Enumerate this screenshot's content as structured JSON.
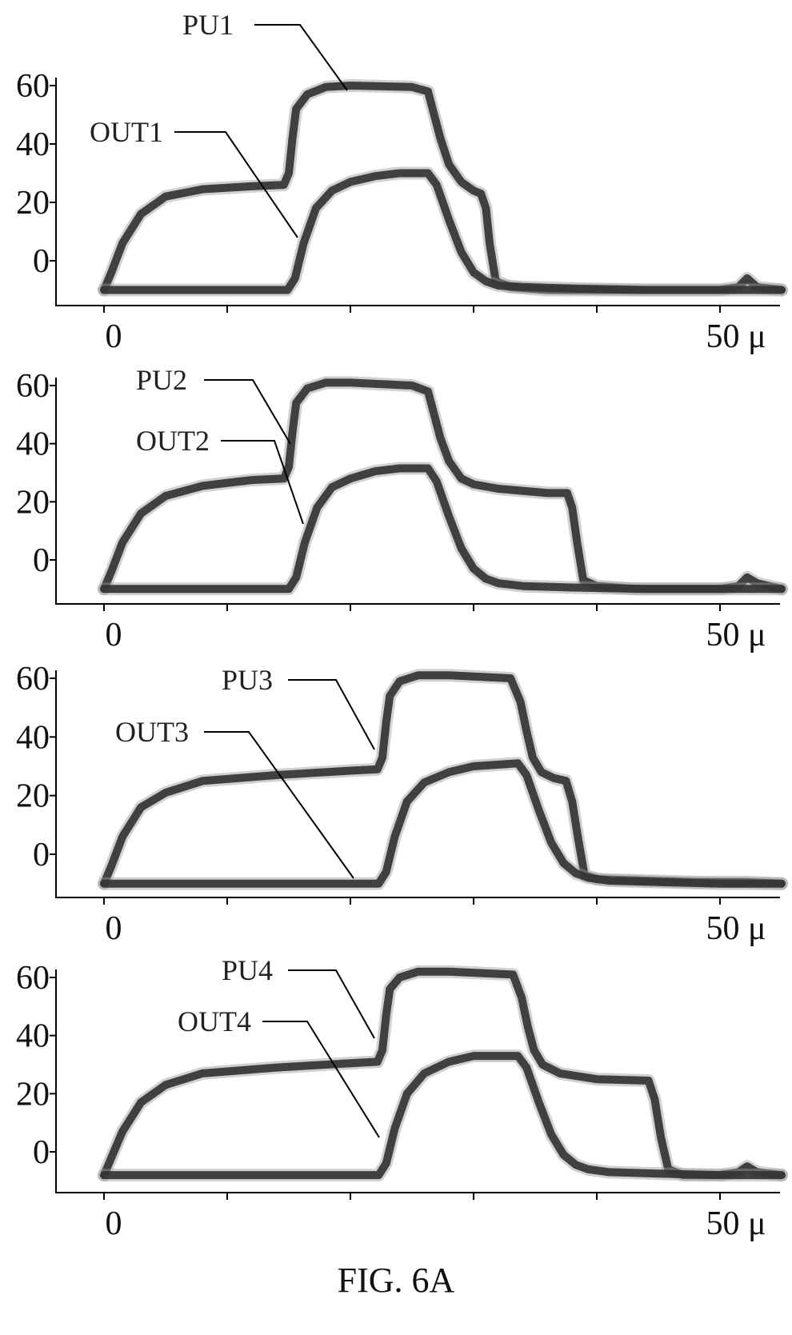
{
  "figure_label": "FIG. 6A",
  "chart_data": [
    {
      "type": "line",
      "xlim": [
        0,
        55
      ],
      "ylim": [
        -15,
        65
      ],
      "x_ticks": [
        0,
        10,
        20,
        30,
        40,
        50
      ],
      "x_tick_labels": [
        "0",
        "50 μ"
      ],
      "y_ticks": [
        0,
        20,
        40,
        60
      ],
      "y_tick_labels": [
        "0",
        "20",
        "40",
        "60"
      ],
      "series": [
        {
          "name": "PU1",
          "x": [
            0,
            0.6,
            1.5,
            3,
            5,
            8,
            12,
            14.6,
            15.0,
            15.3,
            15.6,
            16.5,
            18,
            20,
            25,
            26.3,
            26.8,
            27.3,
            28,
            29,
            30,
            30.6,
            31.0,
            31.3,
            31.8,
            33,
            36,
            40,
            44,
            48,
            50,
            51.5,
            52.2,
            53,
            55
          ],
          "y": [
            -10,
            -4,
            6,
            16,
            22,
            24.5,
            25.5,
            26,
            30,
            42,
            52,
            57,
            59.5,
            60,
            59.5,
            58,
            50,
            42,
            33,
            27,
            24,
            23,
            18,
            6,
            -7,
            -9,
            -10,
            -10,
            -10,
            -10,
            -10,
            -9,
            -6,
            -9,
            -10
          ]
        },
        {
          "name": "OUT1",
          "x": [
            0,
            5,
            10,
            14.9,
            15.5,
            16.2,
            17.2,
            18.5,
            20,
            22,
            24,
            26.3,
            27,
            28,
            29,
            30,
            31,
            32,
            34,
            38,
            44,
            50,
            55
          ],
          "y": [
            -10,
            -10,
            -10,
            -10,
            -6,
            6,
            18,
            24,
            27,
            29,
            30,
            30,
            26,
            14,
            3,
            -4,
            -7,
            -8.5,
            -9,
            -9.5,
            -10,
            -10,
            -10
          ]
        }
      ],
      "annotations": [
        {
          "text": "PU1",
          "target_series": "PU1"
        },
        {
          "text": "OUT1",
          "target_series": "OUT1"
        }
      ]
    },
    {
      "type": "line",
      "xlim": [
        0,
        55
      ],
      "ylim": [
        -15,
        65
      ],
      "x_ticks": [
        0,
        10,
        20,
        30,
        40,
        50
      ],
      "x_tick_labels": [
        "0",
        "50 μ"
      ],
      "y_ticks": [
        0,
        20,
        40,
        60
      ],
      "y_tick_labels": [
        "0",
        "20",
        "40",
        "60"
      ],
      "series": [
        {
          "name": "PU2",
          "x": [
            0,
            0.6,
            1.5,
            3,
            5,
            8,
            12,
            14.6,
            15.0,
            15.3,
            15.6,
            16.5,
            18,
            20,
            25,
            26.3,
            26.8,
            27.3,
            28,
            29,
            30,
            32,
            36,
            37.6,
            38.0,
            38.4,
            38.9,
            40,
            43,
            47,
            50,
            51.5,
            52.2,
            53,
            55
          ],
          "y": [
            -10,
            -4,
            6,
            16,
            22,
            25.5,
            27.5,
            28,
            32,
            44,
            54,
            59,
            61,
            61,
            60,
            58,
            50,
            42,
            34,
            28,
            26,
            24.5,
            23,
            23,
            18,
            6,
            -7,
            -9,
            -10,
            -10,
            -10,
            -9,
            -6,
            -8,
            -10
          ]
        },
        {
          "name": "OUT2",
          "x": [
            0,
            5,
            10,
            15.0,
            15.6,
            16.3,
            17.3,
            18.5,
            20,
            22,
            24,
            26.3,
            27,
            28,
            29,
            30,
            31,
            32,
            34,
            38,
            44,
            50,
            55
          ],
          "y": [
            -10,
            -10,
            -10,
            -10,
            -6,
            6,
            18,
            25,
            28,
            30.5,
            31.5,
            31.5,
            27,
            15,
            4,
            -3,
            -6.5,
            -8,
            -9,
            -9.5,
            -10,
            -10,
            -10
          ]
        }
      ],
      "annotations": [
        {
          "text": "PU2",
          "target_series": "PU2"
        },
        {
          "text": "OUT2",
          "target_series": "OUT2"
        }
      ]
    },
    {
      "type": "line",
      "xlim": [
        0,
        55
      ],
      "ylim": [
        -15,
        65
      ],
      "x_ticks": [
        0,
        10,
        20,
        30,
        40,
        50
      ],
      "x_tick_labels": [
        "0",
        "50 μ"
      ],
      "y_ticks": [
        0,
        20,
        40,
        60
      ],
      "y_tick_labels": [
        "0",
        "20",
        "40",
        "60"
      ],
      "series": [
        {
          "name": "PU3",
          "x": [
            0,
            0.6,
            1.5,
            3,
            5,
            8,
            14,
            20,
            22.2,
            22.6,
            22.9,
            23.2,
            24,
            25.5,
            28,
            33,
            33.8,
            34.3,
            34.8,
            35.5,
            36.5,
            37.5,
            38.0,
            38.5,
            39.0,
            40,
            44,
            48,
            52,
            55
          ],
          "y": [
            -10,
            -4,
            6,
            16,
            21,
            25,
            27,
            28.5,
            29,
            33,
            45,
            54,
            59,
            61,
            61,
            60,
            52,
            42,
            33,
            28,
            26,
            25,
            18,
            5,
            -7,
            -8.5,
            -9,
            -9.5,
            -9.5,
            -10
          ]
        },
        {
          "name": "OUT3",
          "x": [
            0,
            5,
            10,
            15,
            22.3,
            22.9,
            23.6,
            24.6,
            26,
            28,
            30,
            33.6,
            34.3,
            35.3,
            36.3,
            37.3,
            38.3,
            39.3,
            41,
            45,
            50,
            55
          ],
          "y": [
            -10,
            -10,
            -10,
            -10,
            -10,
            -6,
            6,
            18,
            24.5,
            28,
            30,
            31,
            27,
            15,
            4,
            -3,
            -6.5,
            -8,
            -9,
            -9.5,
            -10,
            -10
          ]
        }
      ],
      "annotations": [
        {
          "text": "PU3",
          "target_series": "PU3"
        },
        {
          "text": "OUT3",
          "target_series": "OUT3"
        }
      ]
    },
    {
      "type": "line",
      "xlim": [
        0,
        55
      ],
      "ylim": [
        -15,
        65
      ],
      "x_ticks": [
        0,
        10,
        20,
        30,
        40,
        50
      ],
      "x_tick_labels": [
        "0",
        "50 μ"
      ],
      "y_ticks": [
        0,
        20,
        40,
        60
      ],
      "y_tick_labels": [
        "0",
        "20",
        "40",
        "60"
      ],
      "series": [
        {
          "name": "PU4",
          "x": [
            0,
            0.6,
            1.5,
            3,
            5,
            8,
            14,
            20,
            22.2,
            22.6,
            22.9,
            23.2,
            24,
            25.5,
            28,
            33.2,
            33.9,
            34.4,
            34.9,
            35.6,
            37,
            40,
            44.2,
            44.7,
            45.2,
            45.8,
            47,
            50,
            51.5,
            52.2,
            53,
            55
          ],
          "y": [
            -8,
            -2,
            7,
            17,
            23,
            27,
            29,
            30.5,
            31,
            35,
            47,
            56,
            60,
            62,
            62,
            61,
            53,
            43,
            35,
            30,
            27,
            25,
            24.5,
            18,
            5,
            -6,
            -8,
            -8,
            -7,
            -5,
            -7,
            -8
          ]
        },
        {
          "name": "OUT4",
          "x": [
            0,
            5,
            10,
            15,
            22.3,
            22.9,
            23.6,
            24.6,
            26,
            28,
            30,
            33.6,
            34.3,
            35.3,
            36.3,
            37.3,
            38.3,
            39.3,
            41,
            45,
            50,
            55
          ],
          "y": [
            -8,
            -8,
            -8,
            -8,
            -8,
            -4,
            8,
            20,
            27,
            31,
            33,
            33,
            29,
            17,
            6,
            -1,
            -4.5,
            -6,
            -7,
            -7.5,
            -8,
            -8
          ]
        }
      ],
      "annotations": [
        {
          "text": "PU4",
          "target_series": "PU4"
        },
        {
          "text": "OUT4",
          "target_series": "OUT4"
        }
      ]
    }
  ]
}
